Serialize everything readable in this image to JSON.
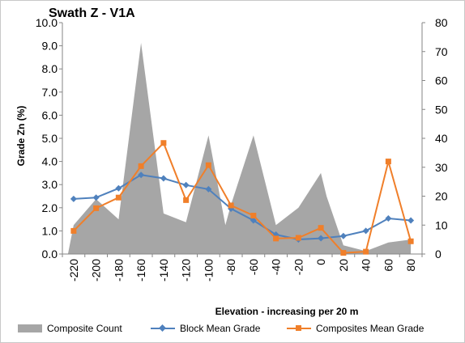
{
  "chart_data": {
    "type": "bar",
    "title": "Swath Z - V1A",
    "xlabel": "Elevation - increasing per 20 m",
    "ylabel": "Grade Zn (%)",
    "y2label": "",
    "categories": [
      "-220",
      "-200",
      "-180",
      "-160",
      "-140",
      "-120",
      "-100",
      "-80",
      "-60",
      "-40",
      "-20",
      "0",
      "20",
      "40",
      "60",
      "80"
    ],
    "ylim": [
      0,
      10
    ],
    "y2lim": [
      0,
      80
    ],
    "yticks": [
      "0.0",
      "1.0",
      "2.0",
      "3.0",
      "4.0",
      "5.0",
      "6.0",
      "7.0",
      "8.0",
      "9.0",
      "10.0"
    ],
    "y2ticks": [
      "0",
      "10",
      "20",
      "30",
      "40",
      "50",
      "60",
      "70",
      "80"
    ],
    "series": [
      {
        "name": "Composite Count",
        "kind": "area",
        "axis": "secondary",
        "color": "#a6a6a6",
        "x": [
          -225,
          -220,
          -200,
          -180,
          -160,
          -140,
          -120,
          -100,
          -85,
          -80,
          -60,
          -40,
          -20,
          0,
          5,
          20,
          40,
          60,
          80
        ],
        "values": [
          0,
          10,
          19,
          12,
          73,
          14,
          11,
          41,
          10,
          17,
          41,
          10,
          16,
          28,
          20,
          3,
          1,
          4,
          5
        ]
      },
      {
        "name": "Block Mean Grade",
        "kind": "line",
        "axis": "primary",
        "color": "#4f81bd",
        "marker": "diamond",
        "values": [
          2.38,
          2.44,
          2.84,
          3.42,
          3.27,
          2.98,
          2.8,
          1.96,
          1.45,
          0.84,
          0.63,
          0.68,
          0.78,
          1.0,
          1.54,
          1.45
        ]
      },
      {
        "name": "Composites Mean Grade",
        "kind": "line",
        "axis": "primary",
        "color": "#f07f2a",
        "marker": "square",
        "values": [
          1.0,
          1.98,
          2.44,
          3.8,
          4.8,
          2.33,
          3.84,
          2.1,
          1.66,
          0.67,
          0.7,
          1.13,
          0.05,
          0.1,
          4.0,
          0.55
        ]
      }
    ],
    "grid": false,
    "legend_position": "bottom"
  }
}
